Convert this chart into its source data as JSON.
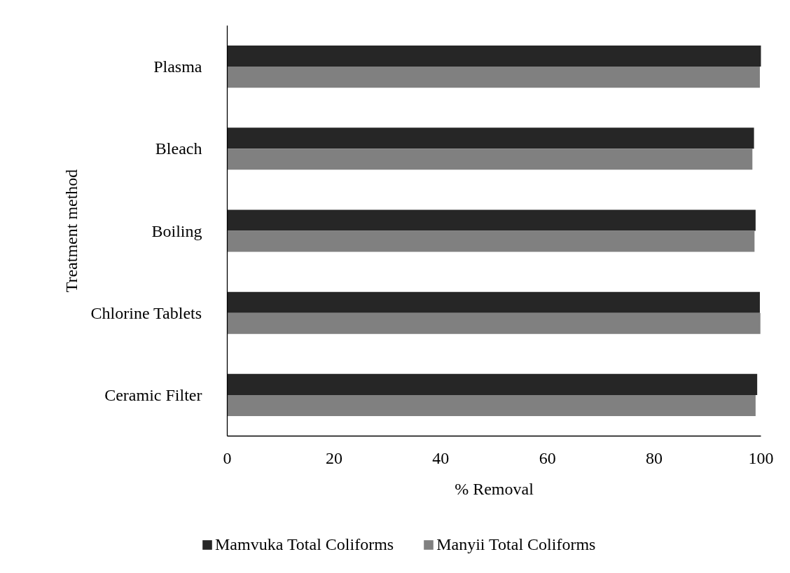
{
  "chart_data": {
    "type": "bar",
    "orientation": "horizontal",
    "xlabel": "% Removal",
    "ylabel": "Treatment method",
    "categories": [
      "Plasma",
      "Bleach",
      "Boiling",
      "Chlorine Tablets",
      "Ceramic Filter"
    ],
    "series": [
      {
        "name": "Mamvuka Total Coliforms",
        "color": "#262626",
        "values": [
          100,
          98.7,
          99.0,
          99.8,
          99.3
        ]
      },
      {
        "name": "Manyii Total Coliforms",
        "color": "#808080",
        "values": [
          99.8,
          98.4,
          98.8,
          99.9,
          99.0
        ]
      }
    ],
    "xlim": [
      0,
      100
    ],
    "xticks": [
      0,
      20,
      40,
      60,
      80,
      100
    ],
    "legend": "bottom"
  }
}
